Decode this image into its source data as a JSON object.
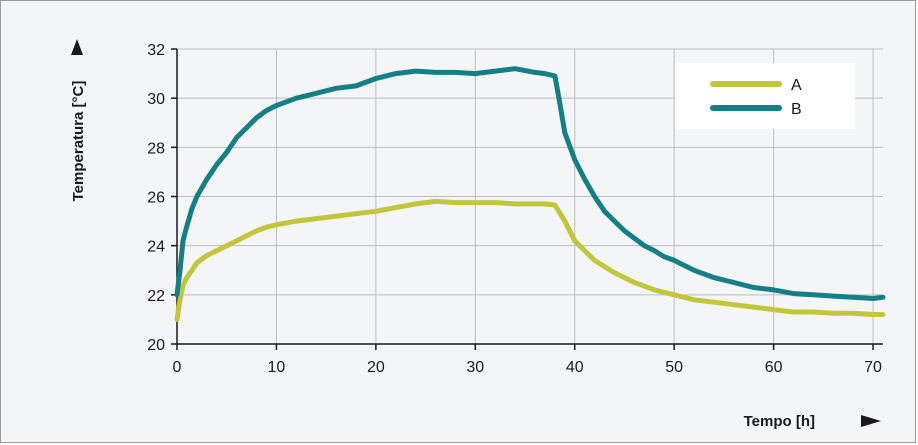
{
  "chart_data": {
    "type": "line",
    "title": "",
    "xlabel": "Tempo [h]",
    "ylabel": "Temperatura [°C]",
    "xlim": [
      0,
      71
    ],
    "ylim": [
      20,
      32
    ],
    "x_ticks": [
      "0",
      "10",
      "20",
      "30",
      "40",
      "50",
      "60",
      "70"
    ],
    "y_ticks": [
      "20",
      "22",
      "24",
      "26",
      "28",
      "30",
      "32"
    ],
    "grid": true,
    "legend_position": "top-right",
    "series": [
      {
        "name": "A",
        "color": "#c2c63a",
        "x": [
          0,
          0.3,
          0.6,
          1,
          1.5,
          2,
          3,
          4,
          5,
          6,
          7,
          8,
          9,
          10,
          12,
          14,
          16,
          18,
          20,
          22,
          24,
          26,
          28,
          30,
          32,
          34,
          36,
          37,
          38,
          39,
          40,
          41,
          42,
          43,
          44,
          45,
          46,
          47,
          48,
          50,
          52,
          54,
          56,
          58,
          60,
          62,
          64,
          66,
          68,
          70,
          71
        ],
        "y": [
          21.0,
          21.8,
          22.4,
          22.7,
          23.0,
          23.3,
          23.6,
          23.8,
          24.0,
          24.2,
          24.4,
          24.6,
          24.75,
          24.85,
          25.0,
          25.1,
          25.2,
          25.3,
          25.4,
          25.55,
          25.7,
          25.8,
          25.75,
          25.75,
          25.75,
          25.7,
          25.7,
          25.7,
          25.65,
          25.0,
          24.2,
          23.8,
          23.4,
          23.15,
          22.9,
          22.7,
          22.5,
          22.35,
          22.2,
          22.0,
          21.8,
          21.7,
          21.6,
          21.5,
          21.4,
          21.3,
          21.3,
          21.25,
          21.25,
          21.2,
          21.2
        ]
      },
      {
        "name": "B",
        "color": "#157f86",
        "x": [
          0,
          0.3,
          0.6,
          1,
          1.5,
          2,
          3,
          4,
          5,
          6,
          7,
          8,
          9,
          10,
          12,
          14,
          16,
          18,
          20,
          22,
          24,
          26,
          28,
          30,
          32,
          34,
          36,
          37,
          38,
          38.5,
          39,
          40,
          41,
          42,
          43,
          44,
          45,
          46,
          47,
          48,
          49,
          50,
          52,
          54,
          56,
          58,
          60,
          62,
          64,
          66,
          68,
          70,
          71
        ],
        "y": [
          22.0,
          23.0,
          24.2,
          24.8,
          25.5,
          26.0,
          26.7,
          27.3,
          27.8,
          28.4,
          28.8,
          29.2,
          29.5,
          29.7,
          30.0,
          30.2,
          30.4,
          30.5,
          30.8,
          31.0,
          31.1,
          31.05,
          31.05,
          31.0,
          31.1,
          31.2,
          31.05,
          31.0,
          30.9,
          29.8,
          28.6,
          27.5,
          26.7,
          26.0,
          25.4,
          25.0,
          24.6,
          24.3,
          24.0,
          23.8,
          23.55,
          23.4,
          23.0,
          22.7,
          22.5,
          22.3,
          22.2,
          22.05,
          22.0,
          21.95,
          21.9,
          21.85,
          21.9
        ]
      }
    ]
  }
}
